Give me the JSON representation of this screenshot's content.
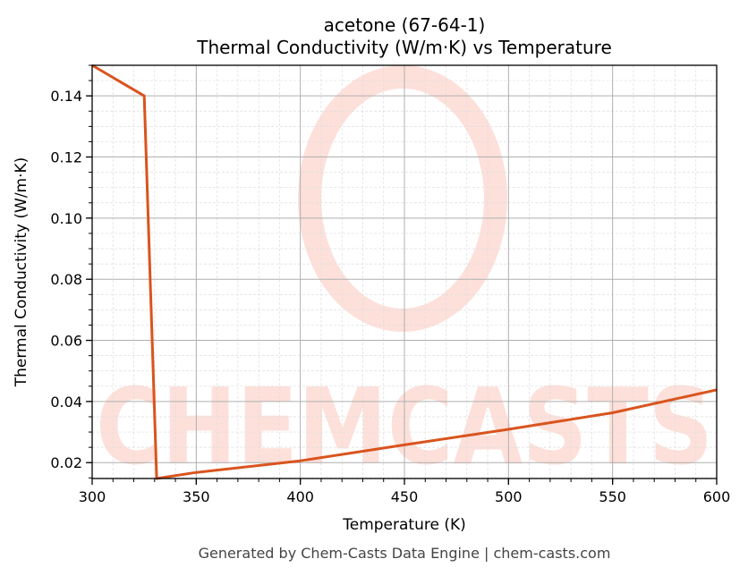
{
  "chart_data": {
    "type": "line",
    "title": "acetone (67-64-1)",
    "subtitle": "Thermal Conductivity (W/m·K) vs Temperature",
    "xlabel": "Temperature (K)",
    "ylabel": "Thermal Conductivity (W/m·K)",
    "xlim": [
      300,
      600
    ],
    "ylim": [
      0.0148,
      0.15
    ],
    "x_ticks": [
      300,
      350,
      400,
      450,
      500,
      550,
      600
    ],
    "x_tick_labels": [
      "300",
      "350",
      "400",
      "450",
      "500",
      "550",
      "600"
    ],
    "y_ticks": [
      0.02,
      0.04,
      0.06,
      0.08,
      0.1,
      0.12,
      0.14
    ],
    "y_tick_labels": [
      "0.02",
      "0.04",
      "0.06",
      "0.08",
      "0.10",
      "0.12",
      "0.14"
    ],
    "grid": true,
    "legend": null,
    "series": [
      {
        "name": "Thermal Conductivity",
        "color": "#d9541e",
        "x": [
          300,
          325,
          331,
          350,
          400,
          450,
          500,
          550,
          600
        ],
        "y": [
          0.15,
          0.14,
          0.0148,
          0.0168,
          0.0206,
          0.0258,
          0.0309,
          0.0363,
          0.0438
        ]
      }
    ]
  },
  "header": {
    "title": "acetone (67-64-1)",
    "subtitle": "Thermal Conductivity (W/m·K) vs Temperature"
  },
  "axes": {
    "xlabel": "Temperature (K)",
    "ylabel": "Thermal Conductivity (W/m·K)"
  },
  "watermark": {
    "text": "CHEMCASTS",
    "color": "#fde0da"
  },
  "footer": {
    "text": "Generated by Chem-Casts Data Engine | chem-casts.com"
  }
}
